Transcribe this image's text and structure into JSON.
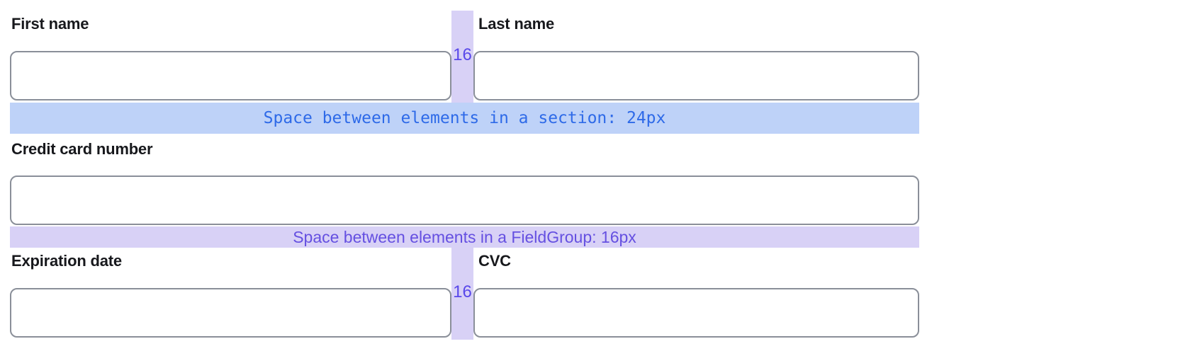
{
  "form": {
    "fields": {
      "first_name": {
        "label": "First name",
        "value": ""
      },
      "last_name": {
        "label": "Last name",
        "value": ""
      },
      "card_number": {
        "label": "Credit card number",
        "value": ""
      },
      "expiration": {
        "label": "Expiration date",
        "value": ""
      },
      "cvc": {
        "label": "CVC",
        "value": ""
      }
    }
  },
  "annotations": {
    "section_gap_text": "Space between elements in a section: 24px",
    "fieldgroup_gap_text": "Space between elements in a FieldGroup: 16px",
    "column_gap_text": "16"
  },
  "colors": {
    "background": "#ffffff",
    "label_text": "#17181c",
    "input_border": "#8a8f99",
    "section_gap_bg": "#bed2f8",
    "section_gap_text": "#2e6ae8",
    "fieldgroup_gap_bg": "#d8d1f6",
    "fieldgroup_gap_text": "#6550e1",
    "column_gap_bg": "#d8d1f6",
    "column_gap_number": "#5948ea"
  }
}
